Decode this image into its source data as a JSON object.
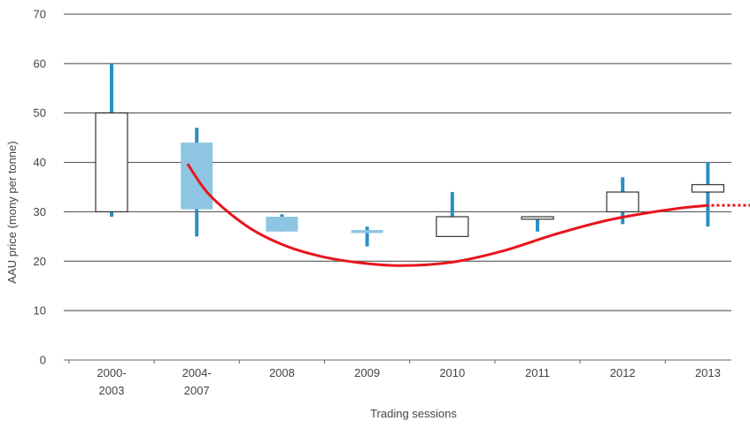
{
  "chart_data": {
    "type": "candlestick",
    "title": "",
    "xlabel": "Trading sessions",
    "ylabel": "AAU price (mony per tonne)",
    "ylim": [
      0,
      70
    ],
    "yticks": [
      0,
      10,
      20,
      30,
      40,
      50,
      60,
      70
    ],
    "grid": "horizontal",
    "legend": "none",
    "categories": [
      [
        "2000-",
        "2003"
      ],
      [
        "2004-",
        "2007"
      ],
      [
        "2008"
      ],
      [
        "2009"
      ],
      [
        "2010"
      ],
      [
        "2011"
      ],
      [
        "2012"
      ],
      [
        "2013"
      ]
    ],
    "candles": [
      {
        "low": 29,
        "open": 50,
        "close": 30,
        "high": 60,
        "fill": "hollow"
      },
      {
        "low": 25,
        "open": 44,
        "close": 30.5,
        "high": 47,
        "fill": "filled"
      },
      {
        "low": 26,
        "open": 29,
        "close": 26,
        "high": 29.5,
        "fill": "filled"
      },
      {
        "low": 23,
        "open": 26.3,
        "close": 25.7,
        "high": 27,
        "fill": "filled"
      },
      {
        "low": 25,
        "open": 29,
        "close": 25,
        "high": 34,
        "fill": "hollow"
      },
      {
        "low": 26,
        "open": 29,
        "close": 28.5,
        "high": 29,
        "fill": "hollow"
      },
      {
        "low": 27.5,
        "open": 34,
        "close": 30,
        "high": 37,
        "fill": "hollow"
      },
      {
        "low": 27,
        "open": 35.5,
        "close": 34,
        "high": 40,
        "fill": "hollow"
      }
    ],
    "trend_line": {
      "x": [
        0.9,
        1.15,
        1.58,
        2.0,
        2.45,
        2.91,
        3.4,
        4.0,
        4.6,
        5.2,
        5.8,
        6.3,
        6.7,
        7.0
      ],
      "y": [
        39.5,
        33.4,
        27.2,
        23.4,
        21.0,
        19.7,
        19.1,
        19.8,
        22.1,
        25.4,
        28.2,
        29.8,
        30.8,
        31.3
      ],
      "projection_end_x": 7.75,
      "color": "#e8141c"
    },
    "colors": {
      "filled": "#8ec5e2",
      "hollow_fill": "#ffffff",
      "box_stroke": "#333333",
      "wick": "#2a8fc2",
      "grid": "#444444",
      "axis": "#666666",
      "text": "#444444"
    }
  }
}
